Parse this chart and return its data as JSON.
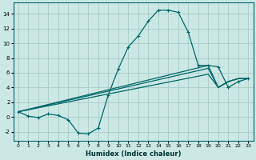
{
  "xlabel": "Humidex (Indice chaleur)",
  "bg_color": "#cce8e4",
  "grid_color": "#a8ccc8",
  "line_color": "#006666",
  "xlim": [
    -0.5,
    23.5
  ],
  "ylim": [
    -3.2,
    15.5
  ],
  "xticks": [
    0,
    1,
    2,
    3,
    4,
    5,
    6,
    7,
    8,
    9,
    10,
    11,
    12,
    13,
    14,
    15,
    16,
    17,
    18,
    19,
    20,
    21,
    22,
    23
  ],
  "yticks": [
    -2,
    0,
    2,
    4,
    6,
    8,
    10,
    12,
    14
  ],
  "lines": [
    {
      "x": [
        0,
        1,
        2,
        3,
        4,
        5,
        6,
        7,
        8,
        9,
        10,
        11,
        12,
        13,
        14,
        15,
        16,
        17,
        18,
        19,
        20,
        21,
        22,
        23
      ],
      "y": [
        0.7,
        0.1,
        -0.1,
        0.4,
        0.2,
        -0.4,
        -2.2,
        -2.3,
        -1.5,
        3.0,
        6.5,
        9.5,
        11.0,
        13.0,
        14.5,
        14.5,
        14.2,
        11.5,
        7.0,
        7.0,
        6.8,
        4.0,
        4.8,
        5.2
      ],
      "markers": true
    },
    {
      "x": [
        0,
        19,
        20,
        21,
        22,
        23
      ],
      "y": [
        0.7,
        7.0,
        4.0,
        4.8,
        5.2,
        5.2
      ],
      "markers": false
    },
    {
      "x": [
        0,
        19,
        20,
        21,
        22,
        23
      ],
      "y": [
        0.7,
        6.6,
        4.0,
        4.8,
        5.2,
        5.2
      ],
      "markers": false
    },
    {
      "x": [
        0,
        19,
        20,
        21,
        22,
        23
      ],
      "y": [
        0.7,
        5.8,
        4.0,
        4.8,
        5.2,
        5.2
      ],
      "markers": false
    }
  ]
}
